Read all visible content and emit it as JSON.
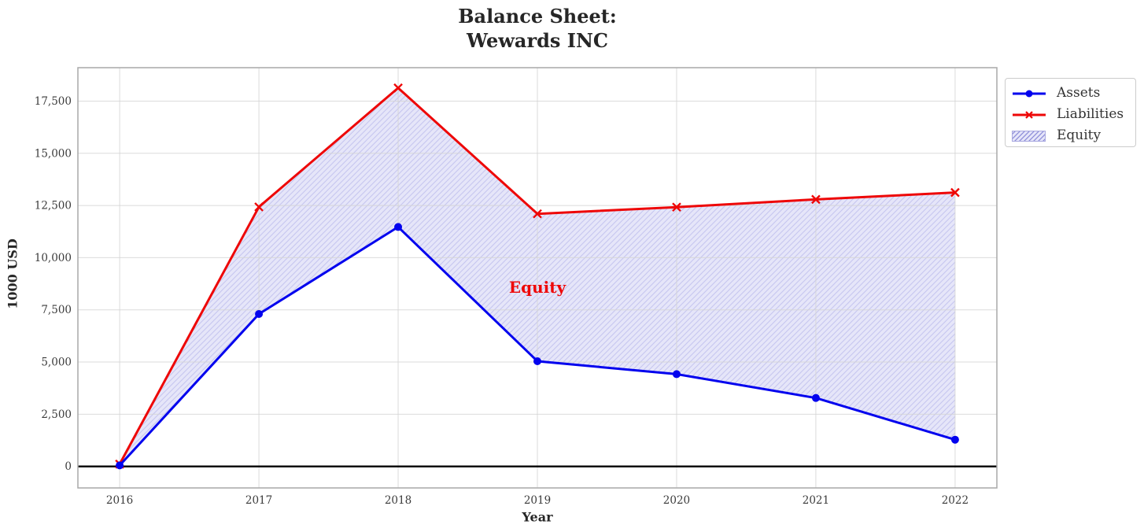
{
  "chart_data": {
    "type": "line",
    "title": "Balance Sheet:\nWewards INC",
    "title_lines": [
      "Balance Sheet:",
      "Wewards INC"
    ],
    "xlabel": "Year",
    "ylabel": "1000 USD",
    "categories": [
      2016,
      2017,
      2018,
      2019,
      2020,
      2021,
      2022
    ],
    "x_tick_labels": [
      "2016",
      "2017",
      "2018",
      "2019",
      "2020",
      "2021",
      "2022"
    ],
    "series": [
      {
        "name": "Assets",
        "color": "#0202ee",
        "marker": "circle",
        "values": [
          50,
          7300,
          11470,
          5040,
          4420,
          3280,
          1280
        ]
      },
      {
        "name": "Liabilities",
        "color": "#ee0707",
        "marker": "x",
        "values": [
          110,
          12430,
          18130,
          12100,
          12420,
          12790,
          13120
        ]
      }
    ],
    "fill_between": {
      "name": "Equity",
      "between": [
        "Liabilities",
        "Assets"
      ],
      "face_color": "#e6e6f9",
      "hatch_color": "#c6c6ef",
      "hatch": "///"
    },
    "yticks": [
      0,
      2500,
      5000,
      7500,
      10000,
      12500,
      15000,
      17500
    ],
    "ytick_labels": [
      "0",
      "2,500",
      "5,000",
      "7,500",
      "10,000",
      "12,500",
      "15,000",
      "17,500"
    ],
    "xlim": [
      2015.7,
      2022.3
    ],
    "ylim": [
      -1030,
      19100
    ],
    "grid": true,
    "zero_line": {
      "y": 0,
      "color": "#000000"
    },
    "annotation": {
      "text": "Equity",
      "color": "#ee0707",
      "x": 2019.0,
      "y": 8580
    },
    "legend": {
      "position": "outside-upper-right",
      "entries": [
        "Assets",
        "Liabilities",
        "Equity"
      ]
    }
  },
  "colors": {
    "grid": "#d5d5d5",
    "spine": "#a9a9a9",
    "tick_label": "#3b3b3b",
    "title": "#262626",
    "legend_border": "#cccccc",
    "legend_text": "#333333",
    "background": "#ffffff"
  }
}
